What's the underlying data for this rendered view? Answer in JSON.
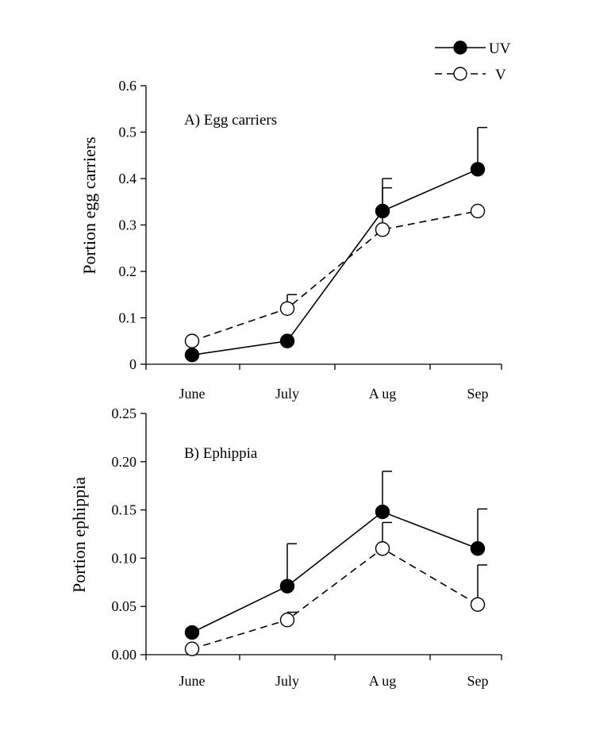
{
  "legend": {
    "items": [
      {
        "label": "UV",
        "marker": "filled-circle",
        "line": "solid"
      },
      {
        "label": "V",
        "marker": "open-circle",
        "line": "dashed"
      }
    ],
    "placement": "top-right"
  },
  "colors": {
    "axis": "#000000",
    "marker_filled": "#000000",
    "marker_open": "#ffffff"
  },
  "chart_data": [
    {
      "type": "line",
      "panel_label": "A) Egg carriers",
      "xlabel": "",
      "ylabel": "Portion egg carriers",
      "categories": [
        "June",
        "July",
        "A ug",
        "Sep"
      ],
      "ylim": [
        0,
        0.6
      ],
      "yticks": [
        "0",
        "0.1",
        "0.2",
        "0.3",
        "0.4",
        "0.5",
        "0.6"
      ],
      "grid": false,
      "series": [
        {
          "name": "UV",
          "values": [
            0.02,
            0.05,
            0.33,
            0.42
          ],
          "error_upper": [
            null,
            null,
            0.4,
            0.51
          ]
        },
        {
          "name": "V",
          "values": [
            0.05,
            0.12,
            0.29,
            0.33
          ],
          "error_upper": [
            null,
            0.15,
            0.38,
            null
          ]
        }
      ]
    },
    {
      "type": "line",
      "panel_label": "B) Ephippia",
      "xlabel": "",
      "ylabel": "Portion ephippia",
      "categories": [
        "June",
        "July",
        "A ug",
        "Sep"
      ],
      "ylim": [
        0,
        0.25
      ],
      "yticks": [
        "0.00",
        "0.05",
        "0.10",
        "0.15",
        "0.20",
        "0.25"
      ],
      "grid": false,
      "series": [
        {
          "name": "UV",
          "values": [
            0.023,
            0.071,
            0.148,
            0.11
          ],
          "error_upper": [
            null,
            0.115,
            0.19,
            0.151
          ]
        },
        {
          "name": "V",
          "values": [
            0.006,
            0.036,
            0.11,
            0.052
          ],
          "error_upper": [
            null,
            0.044,
            0.137,
            0.093
          ]
        }
      ]
    }
  ]
}
